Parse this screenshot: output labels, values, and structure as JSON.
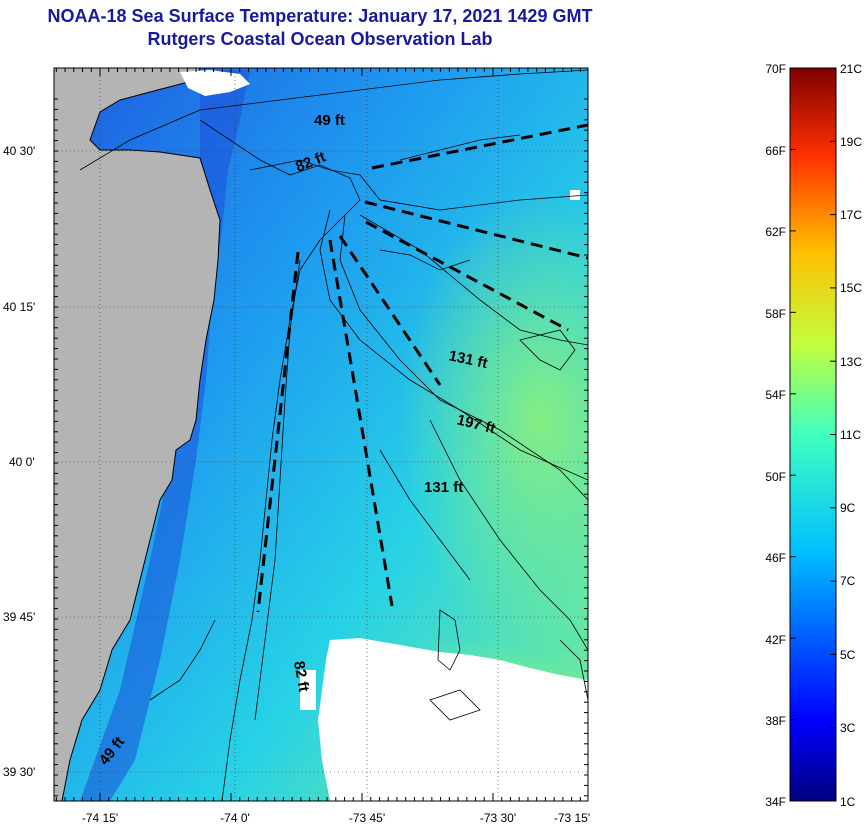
{
  "title": {
    "line1": "NOAA-18 Sea Surface Temperature:  January 17, 2021 1429 GMT",
    "line2": "Rutgers Coastal Ocean Observation Lab"
  },
  "map": {
    "lat_labels": [
      "40 30'",
      "40 15'",
      "40 0'",
      "39 45'",
      "39 30'"
    ],
    "lon_labels": [
      "-74 15'",
      "-74 0'",
      "-73 45'",
      "-73 30'",
      "-73 15'"
    ],
    "depth_labels": [
      "49 ft",
      "82 ft",
      "131 ft",
      "197 ft",
      "131 ft",
      "82 ft",
      "49 ft"
    ]
  },
  "colorbar": {
    "fahrenheit": [
      "70F",
      "66F",
      "62F",
      "58F",
      "54F",
      "50F",
      "46F",
      "42F",
      "38F",
      "34F"
    ],
    "celsius": [
      "21C",
      "19C",
      "17C",
      "15C",
      "13C",
      "11C",
      "9C",
      "7C",
      "5C",
      "3C",
      "1C"
    ]
  },
  "colors": {
    "title": "#1a1aa0",
    "land": "#b4b4b4",
    "cloud": "#ffffff"
  }
}
